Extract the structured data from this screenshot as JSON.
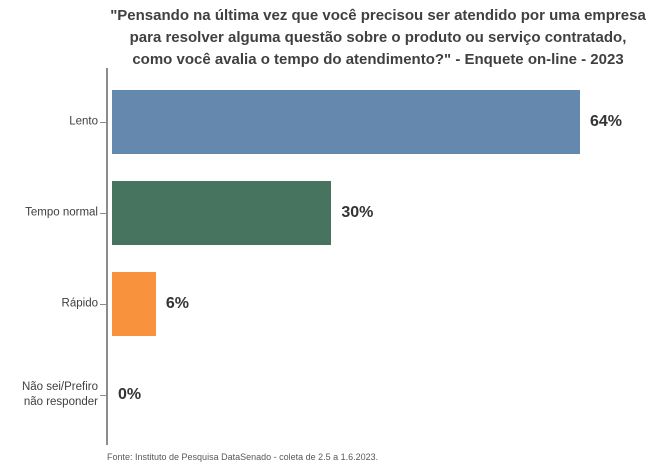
{
  "title": {
    "lines": [
      "\"Pensando na última vez que você precisou ser atendido por uma empresa",
      "para resolver alguma questão sobre o produto ou serviço contratado,",
      "como você avalia o tempo do atendimento?\" - Enquete on-line - 2023"
    ]
  },
  "footer": "Fonte: Instituto de Pesquisa DataSenado - coleta de 2.5 a 1.6.2023.",
  "chart_data": {
    "type": "bar",
    "orientation": "horizontal",
    "title": "\"Pensando na última vez que você precisou ser atendido por uma empresa para resolver alguma questão sobre o produto ou serviço contratado, como você avalia o tempo do atendimento?\" - Enquete on-line - 2023",
    "categories": [
      "Lento",
      "Tempo normal",
      "Rápido",
      "Não sei/Prefiro não responder"
    ],
    "values": [
      64,
      30,
      6,
      0
    ],
    "value_labels": [
      "64%",
      "30%",
      "6%",
      "0%"
    ],
    "unit": "%",
    "bar_colors": [
      "#6488ae",
      "#47745f",
      "#f9923d",
      null
    ],
    "axis_color": "#8c8c8c",
    "grid": false,
    "legend": false,
    "xlabel": "",
    "ylabel": "",
    "source": "Fonte: Instituto de Pesquisa DataSenado - coleta de 2.5 a 1.6.2023."
  }
}
